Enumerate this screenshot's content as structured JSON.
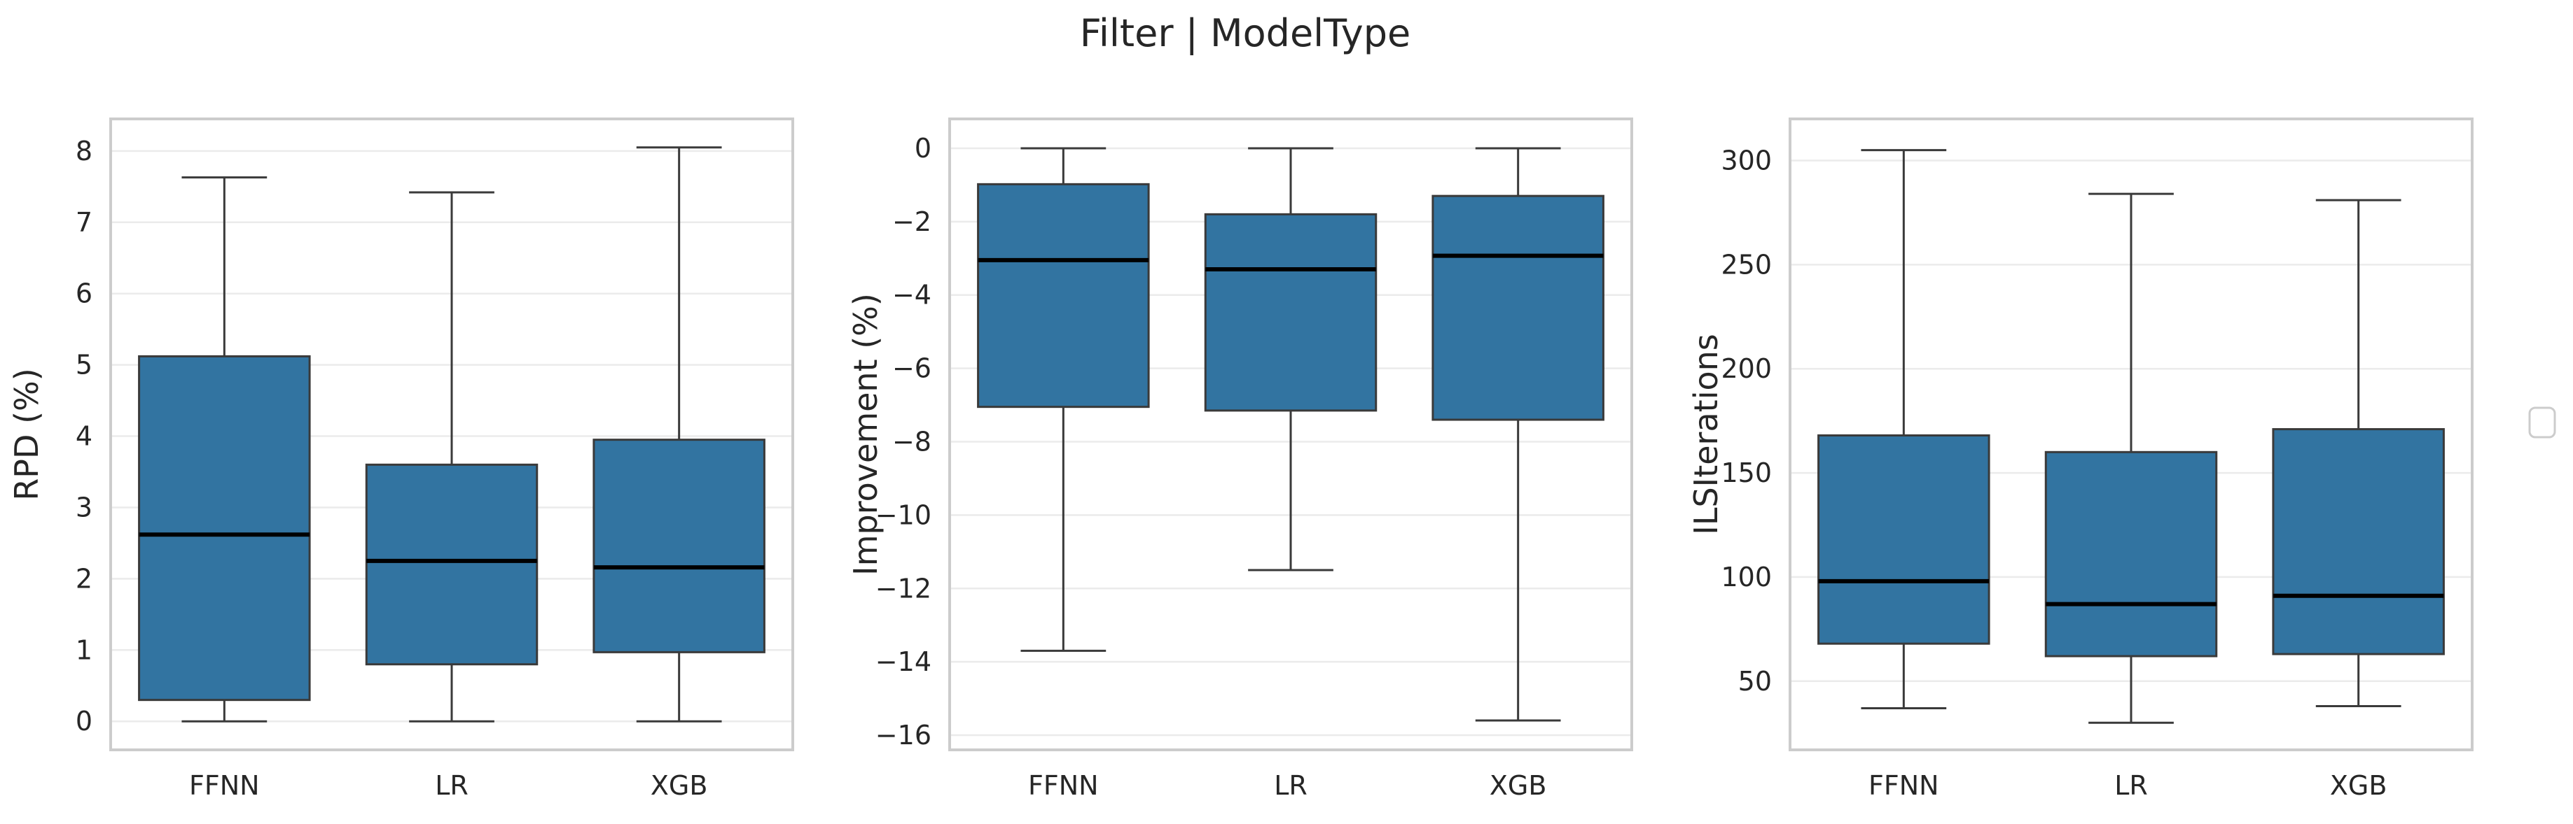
{
  "figure": {
    "suptitle": "Filter | ModelType"
  },
  "chart_data": [
    {
      "type": "box",
      "xlabel": "",
      "ylabel": "RPD (%)",
      "categories": [
        "FFNN",
        "LR",
        "XGB"
      ],
      "ylim": [
        -0.4,
        8.45
      ],
      "yticks": [
        0,
        1,
        2,
        3,
        4,
        5,
        6,
        7,
        8
      ],
      "grid": true,
      "color": "#3274a1",
      "boxes": [
        {
          "category": "FFNN",
          "whisker_low": 0.0,
          "q1": 0.3,
          "median": 2.62,
          "q3": 5.12,
          "whisker_high": 7.63
        },
        {
          "category": "LR",
          "whisker_low": 0.0,
          "q1": 0.8,
          "median": 2.25,
          "q3": 3.6,
          "whisker_high": 7.42
        },
        {
          "category": "XGB",
          "whisker_low": 0.0,
          "q1": 0.97,
          "median": 2.16,
          "q3": 3.95,
          "whisker_high": 8.05
        }
      ]
    },
    {
      "type": "box",
      "xlabel": "",
      "ylabel": "Improvement (%)",
      "categories": [
        "FFNN",
        "LR",
        "XGB"
      ],
      "ylim": [
        -16.4,
        0.8
      ],
      "yticks": [
        0,
        -2,
        -4,
        -6,
        -8,
        -10,
        -12,
        -14,
        -16
      ],
      "grid": true,
      "color": "#3274a1",
      "boxes": [
        {
          "category": "FFNN",
          "whisker_low": -13.7,
          "q1": -7.05,
          "median": -3.05,
          "q3": -0.98,
          "whisker_high": 0.0
        },
        {
          "category": "LR",
          "whisker_low": -11.5,
          "q1": -7.15,
          "median": -3.3,
          "q3": -1.8,
          "whisker_high": 0.0
        },
        {
          "category": "XGB",
          "whisker_low": -15.6,
          "q1": -7.4,
          "median": -2.93,
          "q3": -1.3,
          "whisker_high": 0.0
        }
      ]
    },
    {
      "type": "box",
      "xlabel": "",
      "ylabel": "ILSIterations",
      "categories": [
        "FFNN",
        "LR",
        "XGB"
      ],
      "ylim": [
        17,
        320
      ],
      "yticks": [
        50,
        100,
        150,
        200,
        250,
        300
      ],
      "grid": true,
      "color": "#3274a1",
      "boxes": [
        {
          "category": "FFNN",
          "whisker_low": 37,
          "q1": 68,
          "median": 98,
          "q3": 168,
          "whisker_high": 305
        },
        {
          "category": "LR",
          "whisker_low": 30,
          "q1": 62,
          "median": 87,
          "q3": 160,
          "whisker_high": 284
        },
        {
          "category": "XGB",
          "whisker_low": 38,
          "q1": 63,
          "median": 91,
          "q3": 171,
          "whisker_high": 281
        }
      ]
    }
  ],
  "legend": {
    "placement": "right",
    "entries": []
  }
}
